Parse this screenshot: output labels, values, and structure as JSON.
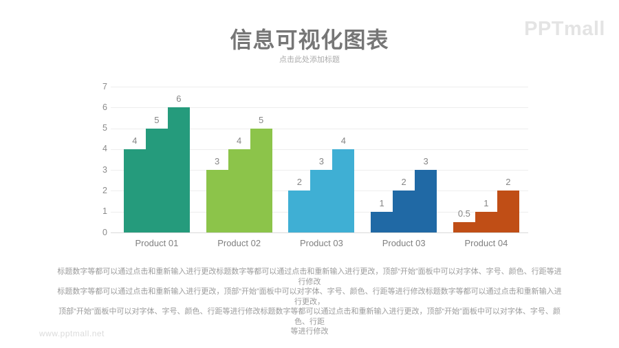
{
  "page": {
    "title": "信息可视化图表",
    "subtitle": "点击此处添加标题",
    "logo": "PPTmall",
    "watermark": "www.pptmall.net",
    "body_lines": [
      "标题数字等都可以通过点击和重新输入进行更改标题数字等都可以通过点击和重新输入进行更改，顶部“开始”面板中可以对字体、字号、颜色、行距等进行修改",
      "标题数字等都可以通过点击和重新输入进行更改，顶部“开始”面板中可以对字体、字号、颜色、行距等进行修改标题数字等都可以通过点击和重新输入进行更改，",
      "顶部“开始”面板中可以对字体、字号、颜色、行距等进行修改标题数字等都可以通过点击和重新输入进行更改，顶部“开始”面板中可以对字体、字号、颜色、行距",
      "等进行修改"
    ]
  },
  "chart_data": {
    "type": "bar",
    "variant": "staircase-step-bars",
    "title": "信息可视化图表",
    "xlabel": "",
    "ylabel": "",
    "categories": [
      "Product 01",
      "Product 02",
      "Product 03",
      "Product 03",
      "Product 04"
    ],
    "series": [
      {
        "name": "Product 01",
        "values": [
          4,
          5,
          6
        ],
        "color": "#259b7c"
      },
      {
        "name": "Product 02",
        "values": [
          3,
          4,
          5
        ],
        "color": "#8cc44a"
      },
      {
        "name": "Product 03",
        "values": [
          2,
          3,
          4
        ],
        "color": "#3fafd4"
      },
      {
        "name": "Product 03",
        "values": [
          1,
          2,
          3
        ],
        "color": "#2069a5"
      },
      {
        "name": "Product 04",
        "values": [
          0.5,
          1,
          2
        ],
        "color": "#c04e16"
      }
    ],
    "yticks": [
      0,
      1,
      2,
      3,
      4,
      5,
      6,
      7
    ],
    "ylim": [
      0,
      7
    ],
    "grid": true,
    "legend": false,
    "value_labels": true
  }
}
